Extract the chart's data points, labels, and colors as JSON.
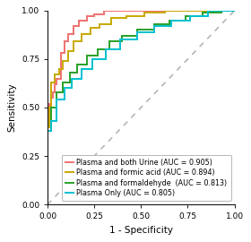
{
  "title": "",
  "xlabel": "1 - Specificity",
  "ylabel": "Sensitivity",
  "xlim": [
    0.0,
    1.0
  ],
  "ylim": [
    0.0,
    1.0
  ],
  "xticks": [
    0.0,
    0.25,
    0.5,
    0.75,
    1.0
  ],
  "yticks": [
    0.0,
    0.25,
    0.5,
    0.75,
    1.0
  ],
  "diagonal_color": "#b0b0b0",
  "diagonal_style": "--",
  "background_color": "#ffffff",
  "curves": [
    {
      "label": "Plasma and both Urine (AUC = 0.905)",
      "color": "#f07070",
      "lw": 1.4,
      "fpr": [
        0.0,
        0.0,
        0.01,
        0.01,
        0.02,
        0.02,
        0.03,
        0.03,
        0.04,
        0.04,
        0.05,
        0.05,
        0.07,
        0.07,
        0.09,
        0.09,
        0.11,
        0.11,
        0.14,
        0.14,
        0.17,
        0.17,
        0.21,
        0.21,
        0.25,
        0.25,
        0.3,
        0.3,
        0.37,
        0.37,
        0.45,
        0.45,
        0.55,
        0.55,
        1.0
      ],
      "tpr": [
        0.0,
        0.48,
        0.48,
        0.52,
        0.52,
        0.55,
        0.55,
        0.58,
        0.58,
        0.62,
        0.62,
        0.65,
        0.65,
        0.78,
        0.78,
        0.84,
        0.84,
        0.88,
        0.88,
        0.92,
        0.92,
        0.95,
        0.95,
        0.97,
        0.97,
        0.98,
        0.98,
        1.0,
        1.0,
        1.0,
        1.0,
        1.0,
        1.0,
        1.0,
        1.0
      ]
    },
    {
      "label": "Plasma and formic acid (AUC = 0.894)",
      "color": "#c8a800",
      "lw": 1.4,
      "fpr": [
        0.0,
        0.0,
        0.01,
        0.01,
        0.02,
        0.02,
        0.04,
        0.04,
        0.06,
        0.06,
        0.08,
        0.08,
        0.11,
        0.11,
        0.14,
        0.14,
        0.18,
        0.18,
        0.23,
        0.23,
        0.28,
        0.28,
        0.34,
        0.34,
        0.42,
        0.42,
        0.52,
        0.52,
        0.63,
        0.63,
        0.78,
        0.78,
        1.0
      ],
      "tpr": [
        0.0,
        0.4,
        0.4,
        0.5,
        0.5,
        0.63,
        0.63,
        0.67,
        0.67,
        0.7,
        0.7,
        0.74,
        0.74,
        0.79,
        0.79,
        0.84,
        0.84,
        0.88,
        0.88,
        0.91,
        0.91,
        0.93,
        0.93,
        0.96,
        0.96,
        0.97,
        0.97,
        0.99,
        0.99,
        1.0,
        1.0,
        1.0,
        1.0
      ]
    },
    {
      "label": "Plasma and formaldehyde  (AUC = 0.813)",
      "color": "#28a028",
      "lw": 1.4,
      "fpr": [
        0.0,
        0.0,
        0.02,
        0.02,
        0.05,
        0.05,
        0.08,
        0.08,
        0.12,
        0.12,
        0.16,
        0.16,
        0.21,
        0.21,
        0.27,
        0.27,
        0.33,
        0.33,
        0.4,
        0.4,
        0.48,
        0.48,
        0.57,
        0.57,
        0.65,
        0.65,
        0.74,
        0.74,
        0.83,
        0.83,
        0.93,
        0.93,
        1.0
      ],
      "tpr": [
        0.0,
        0.38,
        0.38,
        0.5,
        0.5,
        0.58,
        0.58,
        0.63,
        0.63,
        0.68,
        0.68,
        0.72,
        0.72,
        0.77,
        0.77,
        0.8,
        0.8,
        0.84,
        0.84,
        0.87,
        0.87,
        0.9,
        0.9,
        0.93,
        0.93,
        0.95,
        0.95,
        0.97,
        0.97,
        0.99,
        0.99,
        1.0,
        1.0
      ]
    },
    {
      "label": "Plasma Only (AUC = 0.805)",
      "color": "#00c0d0",
      "lw": 1.4,
      "fpr": [
        0.0,
        0.0,
        0.02,
        0.02,
        0.05,
        0.05,
        0.09,
        0.09,
        0.13,
        0.13,
        0.18,
        0.18,
        0.24,
        0.24,
        0.31,
        0.31,
        0.39,
        0.39,
        0.48,
        0.48,
        0.57,
        0.57,
        0.66,
        0.66,
        0.76,
        0.76,
        0.86,
        0.86,
        1.0
      ],
      "tpr": [
        0.0,
        0.38,
        0.38,
        0.43,
        0.43,
        0.54,
        0.54,
        0.6,
        0.6,
        0.65,
        0.65,
        0.7,
        0.7,
        0.75,
        0.75,
        0.8,
        0.8,
        0.85,
        0.85,
        0.89,
        0.89,
        0.92,
        0.92,
        0.95,
        0.95,
        0.97,
        0.97,
        1.0,
        1.0
      ]
    }
  ],
  "legend_fontsize": 5.8,
  "axis_fontsize": 7.5,
  "tick_fontsize": 6.5
}
